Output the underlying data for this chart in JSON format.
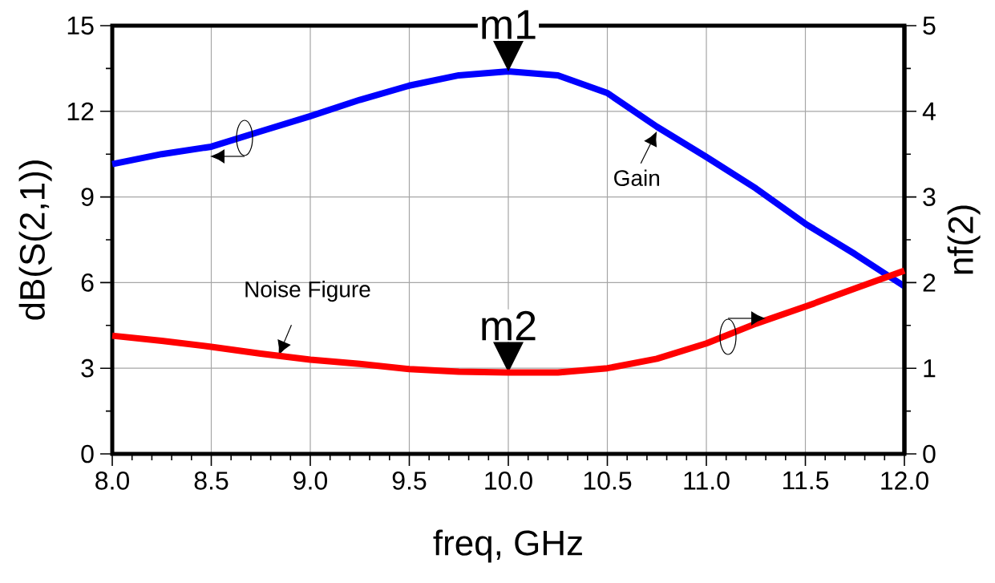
{
  "chart_data": {
    "type": "line",
    "xlabel": "freq, GHz",
    "ylabel": "dB(S(2,1))",
    "y2label": "nf(2)",
    "xlim": [
      8,
      12
    ],
    "ylim": [
      0,
      15
    ],
    "y2lim": [
      0,
      5
    ],
    "xticks": [
      {
        "value": 8,
        "label": "8.0"
      },
      {
        "value": 8.5,
        "label": "8.5"
      },
      {
        "value": 9,
        "label": "9.0"
      },
      {
        "value": 9.5,
        "label": "9.5"
      },
      {
        "value": 10,
        "label": "10.0"
      },
      {
        "value": 10.5,
        "label": "10.5"
      },
      {
        "value": 11,
        "label": "11.0"
      },
      {
        "value": 11.5,
        "label": "11.5"
      },
      {
        "value": 12,
        "label": "12.0"
      }
    ],
    "yticks": [
      0,
      3,
      6,
      9,
      12,
      15
    ],
    "y2ticks": [
      0,
      1,
      2,
      3,
      4,
      5
    ],
    "grid": true,
    "marker": "none",
    "line_style": "solid",
    "x": [
      8,
      8.25,
      8.5,
      8.75,
      9,
      9.25,
      9.5,
      9.75,
      10,
      10.25,
      10.5,
      10.75,
      11,
      11.25,
      11.5,
      11.75,
      12
    ],
    "series": [
      {
        "color": "#0000ff",
        "values": [
          10.15,
          10.5,
          10.76,
          11.3,
          11.83,
          12.4,
          12.9,
          13.26,
          13.4,
          13.26,
          12.64,
          11.46,
          10.4,
          9.3,
          8.06,
          7.0,
          5.87
        ]
      },
      {
        "color": "#ff0000",
        "axis": "y2",
        "values": [
          1.38,
          1.32,
          1.25,
          1.17,
          1.1,
          1.05,
          0.99,
          0.96,
          0.95,
          0.95,
          1.0,
          1.11,
          1.29,
          1.52,
          1.72,
          1.93,
          2.14
        ]
      }
    ],
    "annotations": [
      {
        "text": "m1",
        "x": 10,
        "y": 13.4
      },
      {
        "text": "m2",
        "x": 10,
        "y": 2.85
      },
      {
        "text": "Gain",
        "x": 10.75,
        "y": 11.3
      },
      {
        "text": "Noise Figure",
        "x": 8.84,
        "y": 3.45
      }
    ]
  }
}
